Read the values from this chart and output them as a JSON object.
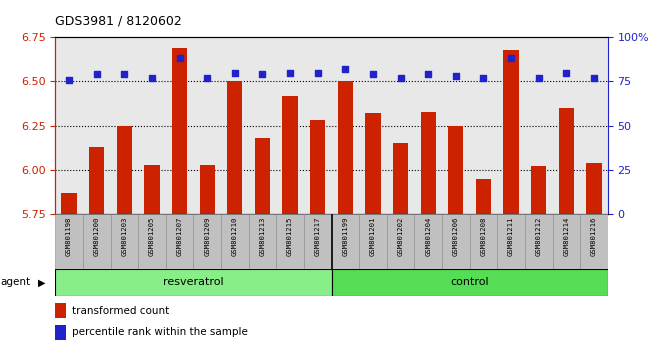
{
  "title": "GDS3981 / 8120602",
  "samples": [
    "GSM801198",
    "GSM801200",
    "GSM801203",
    "GSM801205",
    "GSM801207",
    "GSM801209",
    "GSM801210",
    "GSM801213",
    "GSM801215",
    "GSM801217",
    "GSM801199",
    "GSM801201",
    "GSM801202",
    "GSM801204",
    "GSM801206",
    "GSM801208",
    "GSM801211",
    "GSM801212",
    "GSM801214",
    "GSM801216"
  ],
  "bar_values": [
    5.87,
    6.13,
    6.25,
    6.03,
    6.69,
    6.03,
    6.5,
    6.18,
    6.42,
    6.28,
    6.5,
    6.32,
    6.15,
    6.33,
    6.25,
    5.95,
    6.68,
    6.02,
    6.35,
    6.04
  ],
  "dot_values": [
    76,
    79,
    79,
    77,
    88,
    77,
    80,
    79,
    80,
    80,
    82,
    79,
    77,
    79,
    78,
    77,
    88,
    77,
    80,
    77
  ],
  "groups": [
    {
      "label": "resveratrol",
      "start": 0,
      "end": 9,
      "color": "#88ee88"
    },
    {
      "label": "control",
      "start": 10,
      "end": 19,
      "color": "#55dd55"
    }
  ],
  "ylim_left": [
    5.75,
    6.75
  ],
  "ylim_right": [
    0,
    100
  ],
  "yticks_left": [
    5.75,
    6.0,
    6.25,
    6.5,
    6.75
  ],
  "yticks_right": [
    0,
    25,
    50,
    75,
    100
  ],
  "ytick_labels_right": [
    "0",
    "25",
    "50",
    "75",
    "100%"
  ],
  "grid_lines": [
    6.0,
    6.25,
    6.5
  ],
  "bar_color": "#cc2200",
  "dot_color": "#2222cc",
  "bar_width": 0.55,
  "agent_label": "agent",
  "legend_bar_label": "transformed count",
  "legend_dot_label": "percentile rank within the sample",
  "bg_plot": "#e8e8e8",
  "bg_xtick": "#c0c0c0",
  "fig_bg": "#ffffff"
}
